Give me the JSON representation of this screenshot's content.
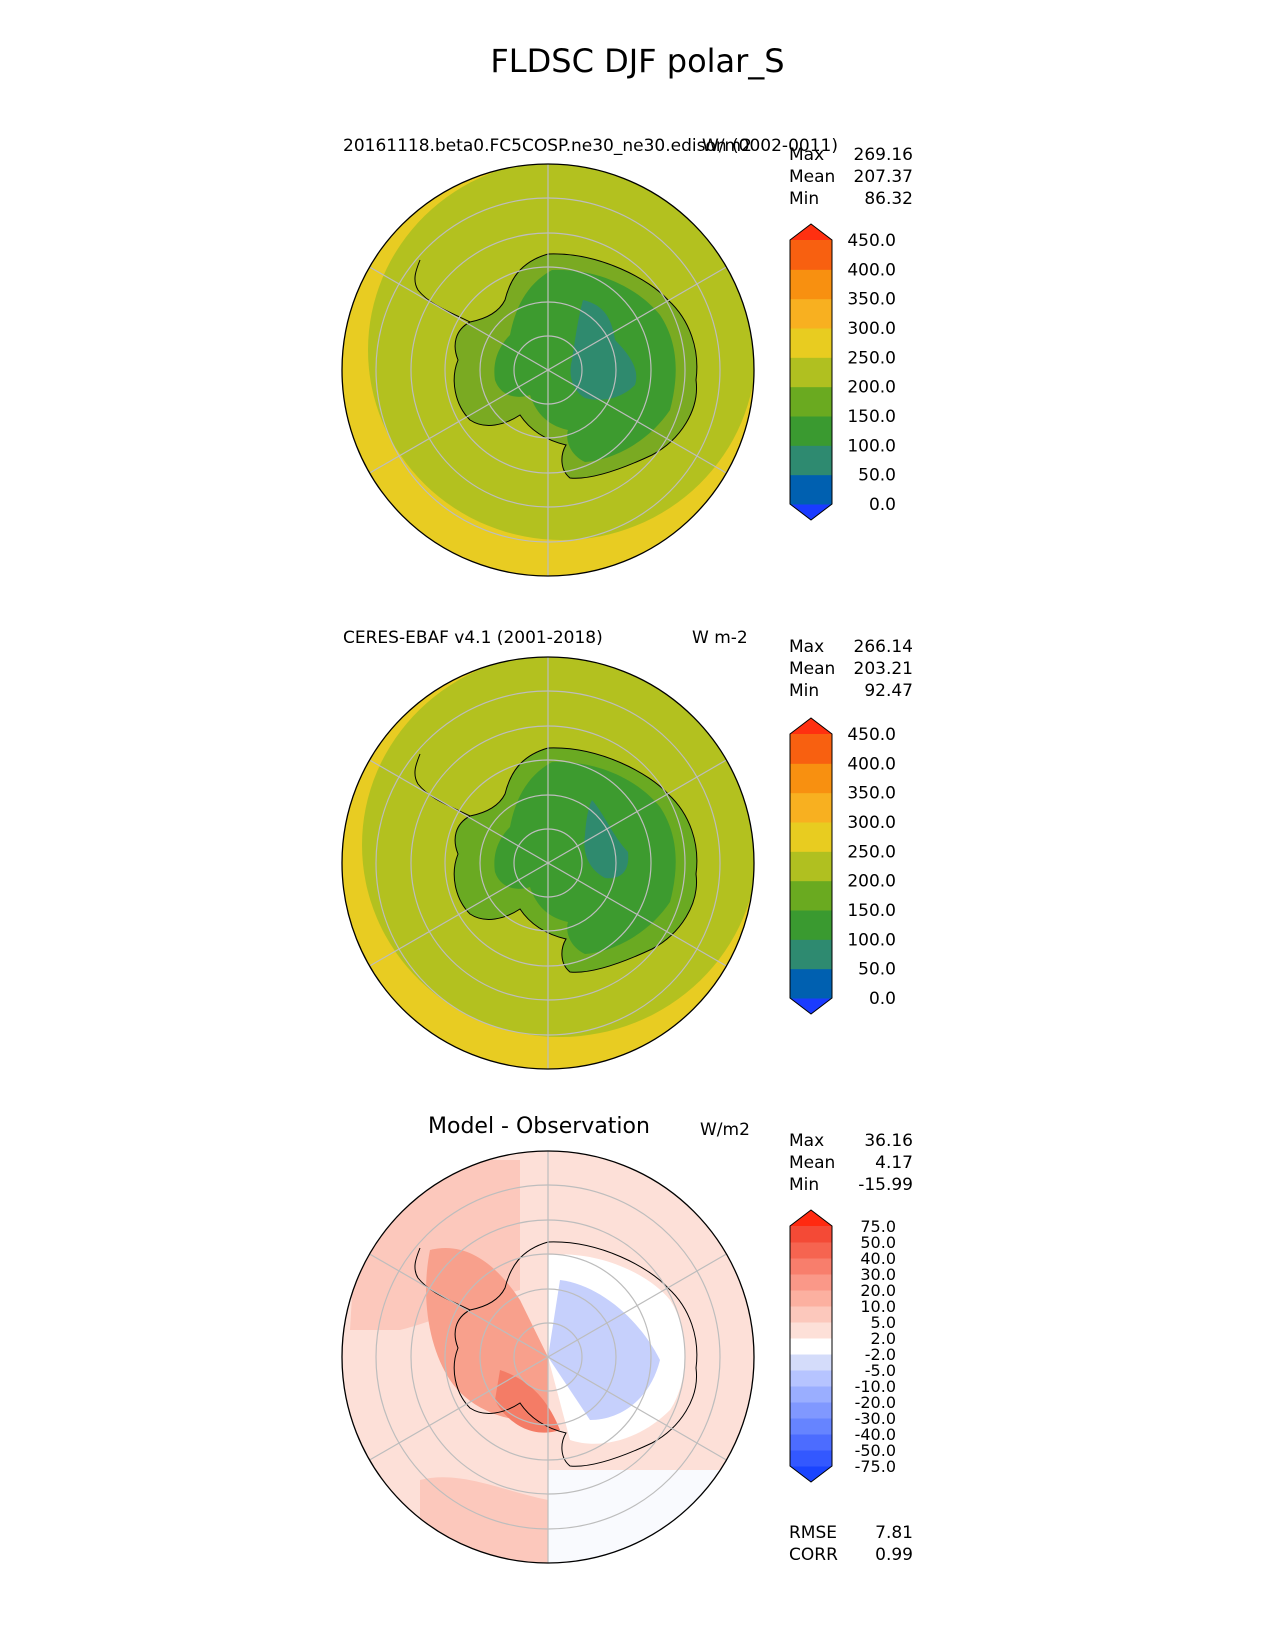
{
  "figure_title": "FLDSC DJF polar_S",
  "panels": [
    {
      "left_title": "20161118.beta0.FC5COSP.ne30_ne30.edison (0002-0011)",
      "units": "W/m2",
      "stats": [
        {
          "label": "Max",
          "value": "269.16"
        },
        {
          "label": "Mean",
          "value": "207.37"
        },
        {
          "label": "Min",
          "value": "86.32"
        }
      ],
      "colorbar": {
        "levels": [
          "0.0",
          "50.0",
          "100.0",
          "150.0",
          "200.0",
          "250.0",
          "300.0",
          "350.0",
          "400.0",
          "450.0"
        ],
        "colors": [
          "#1a3bff",
          "#0060b0",
          "#2e8a70",
          "#3a9a30",
          "#6aaa20",
          "#b0c020",
          "#e8cc20",
          "#f8b020",
          "#f89010",
          "#f86010",
          "#ff3010"
        ]
      }
    },
    {
      "left_title": "CERES-EBAF v4.1 (2001-2018)",
      "units": "W m-2",
      "stats": [
        {
          "label": "Max",
          "value": "266.14"
        },
        {
          "label": "Mean",
          "value": "203.21"
        },
        {
          "label": "Min",
          "value": "92.47"
        }
      ],
      "colorbar": {
        "levels": [
          "0.0",
          "50.0",
          "100.0",
          "150.0",
          "200.0",
          "250.0",
          "300.0",
          "350.0",
          "400.0",
          "450.0"
        ],
        "colors": [
          "#1a3bff",
          "#0060b0",
          "#2e8a70",
          "#3a9a30",
          "#6aaa20",
          "#b0c020",
          "#e8cc20",
          "#f8b020",
          "#f89010",
          "#f86010",
          "#ff3010"
        ]
      }
    },
    {
      "title": "Model - Observation",
      "units": "W/m2",
      "stats": [
        {
          "label": "Max",
          "value": "36.16"
        },
        {
          "label": "Mean",
          "value": "4.17"
        },
        {
          "label": "Min",
          "value": "-15.99"
        }
      ],
      "colorbar": {
        "levels": [
          "-75.0",
          "-50.0",
          "-40.0",
          "-30.0",
          "-20.0",
          "-10.0",
          "-5.0",
          "-2.0",
          "2.0",
          "5.0",
          "10.0",
          "20.0",
          "30.0",
          "40.0",
          "50.0",
          "75.0"
        ],
        "colors": [
          "#1a44ff",
          "#3358ff",
          "#4c6cff",
          "#6684ff",
          "#8098ff",
          "#9aaeff",
          "#b6c4ff",
          "#d4dcfa",
          "#ffffff",
          "#fde0d8",
          "#fcc8bc",
          "#fcb0a0",
          "#fa9888",
          "#f87e6c",
          "#f66450",
          "#f44a36",
          "#ff2a10"
        ]
      },
      "metrics": [
        {
          "label": "RMSE",
          "value": "7.81"
        },
        {
          "label": "CORR",
          "value": "0.99"
        }
      ]
    }
  ],
  "chart_data": {
    "type": "heatmap",
    "projection": "south polar stereographic",
    "title": "FLDSC DJF polar_S",
    "maps": [
      {
        "name": "20161118.beta0.FC5COSP.ne30_ne30.edison (0002-0011)",
        "units": "W/m2",
        "max": 269.16,
        "mean": 207.37,
        "min": 86.32
      },
      {
        "name": "CERES-EBAF v4.1 (2001-2018)",
        "units": "W m-2",
        "max": 266.14,
        "mean": 203.21,
        "min": 92.47
      },
      {
        "name": "Model - Observation",
        "units": "W/m2",
        "max": 36.16,
        "mean": 4.17,
        "min": -15.99,
        "rmse": 7.81,
        "corr": 0.99
      }
    ],
    "grid": true
  }
}
